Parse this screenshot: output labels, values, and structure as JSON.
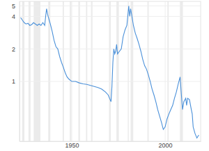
{
  "chart_data": {
    "type": "line",
    "log": "y",
    "grid": true,
    "color": "#4a90d9",
    "x": [
      1922.6,
      1923.5,
      1924.5,
      1925.5,
      1926.5,
      1927.5,
      1928.5,
      1929.5,
      1930.5,
      1931.5,
      1932.5,
      1933.5,
      1934.5,
      1935.5,
      1936.0,
      1936.5,
      1937.0,
      1937.5,
      1938.5,
      1939.5,
      1940.5,
      1941.5,
      1942.5,
      1943.5,
      1944.5,
      1945.5,
      1946.5,
      1947.5,
      1948.5,
      1950,
      1952,
      1954,
      1956,
      1958,
      1960,
      1962,
      1964,
      1966,
      1968,
      1969.5,
      1970.5,
      1971,
      1971.5,
      1972,
      1972.5,
      1973,
      1973.5,
      1974,
      1974.5,
      1975.5,
      1976.5,
      1977.5,
      1978.5,
      1979.5,
      1980.5,
      1981,
      1981.5,
      1982,
      1983,
      1984,
      1985,
      1986,
      1987,
      1988,
      1989,
      1990,
      1991,
      1992,
      1993,
      1994,
      1995,
      1996,
      1997,
      1998,
      1999,
      2000,
      2001,
      2002,
      2003,
      2004,
      2005,
      2006,
      2007,
      2008,
      2008.7,
      2009.3,
      2010,
      2011,
      2011.5,
      2012,
      2013,
      2014,
      2014.5,
      2015,
      2016,
      2017,
      2018
    ],
    "values": [
      3.9,
      3.7,
      3.5,
      3.4,
      3.45,
      3.3,
      3.35,
      3.5,
      3.4,
      3.3,
      3.4,
      3.3,
      3.5,
      3.3,
      4.0,
      4.7,
      4.2,
      3.9,
      3.4,
      2.9,
      2.4,
      2.1,
      2.0,
      1.7,
      1.5,
      1.35,
      1.2,
      1.1,
      1.05,
      1.0,
      1.0,
      0.97,
      0.95,
      0.94,
      0.92,
      0.9,
      0.88,
      0.85,
      0.8,
      0.75,
      0.68,
      0.65,
      0.9,
      1.5,
      2.0,
      1.8,
      1.9,
      2.2,
      1.8,
      1.9,
      2.0,
      2.6,
      3.0,
      3.3,
      5.0,
      4.0,
      4.7,
      4.2,
      3.3,
      2.8,
      2.5,
      2.2,
      1.9,
      1.6,
      1.4,
      1.3,
      1.15,
      1.0,
      0.85,
      0.75,
      0.65,
      0.55,
      0.48,
      0.42,
      0.36,
      0.38,
      0.45,
      0.5,
      0.55,
      0.6,
      0.7,
      0.8,
      0.95,
      1.1,
      0.75,
      0.55,
      0.65,
      0.7,
      0.6,
      0.7,
      0.68,
      0.55,
      0.5,
      0.38,
      0.33,
      0.3,
      0.32
    ],
    "recessions": [
      [
        1923.4,
        1924.6
      ],
      [
        1926.8,
        1927.9
      ],
      [
        1929.6,
        1933.2
      ],
      [
        1937.4,
        1938.5
      ],
      [
        1945.1,
        1945.8
      ],
      [
        1948.9,
        1949.8
      ],
      [
        1953.5,
        1954.4
      ],
      [
        1957.6,
        1958.3
      ],
      [
        1960.3,
        1961.1
      ],
      [
        1969.9,
        1970.9
      ],
      [
        1973.9,
        1975.2
      ],
      [
        1980.0,
        1980.5
      ],
      [
        1981.5,
        1982.9
      ],
      [
        1990.5,
        1991.2
      ],
      [
        2001.2,
        2001.9
      ],
      [
        2007.9,
        2009.5
      ]
    ],
    "xlim": [
      1922,
      2019
    ],
    "xticks": [
      1950,
      2000
    ],
    "ylim": [
      0.28,
      5.5
    ],
    "yticks": [
      1,
      2,
      4,
      5
    ]
  }
}
